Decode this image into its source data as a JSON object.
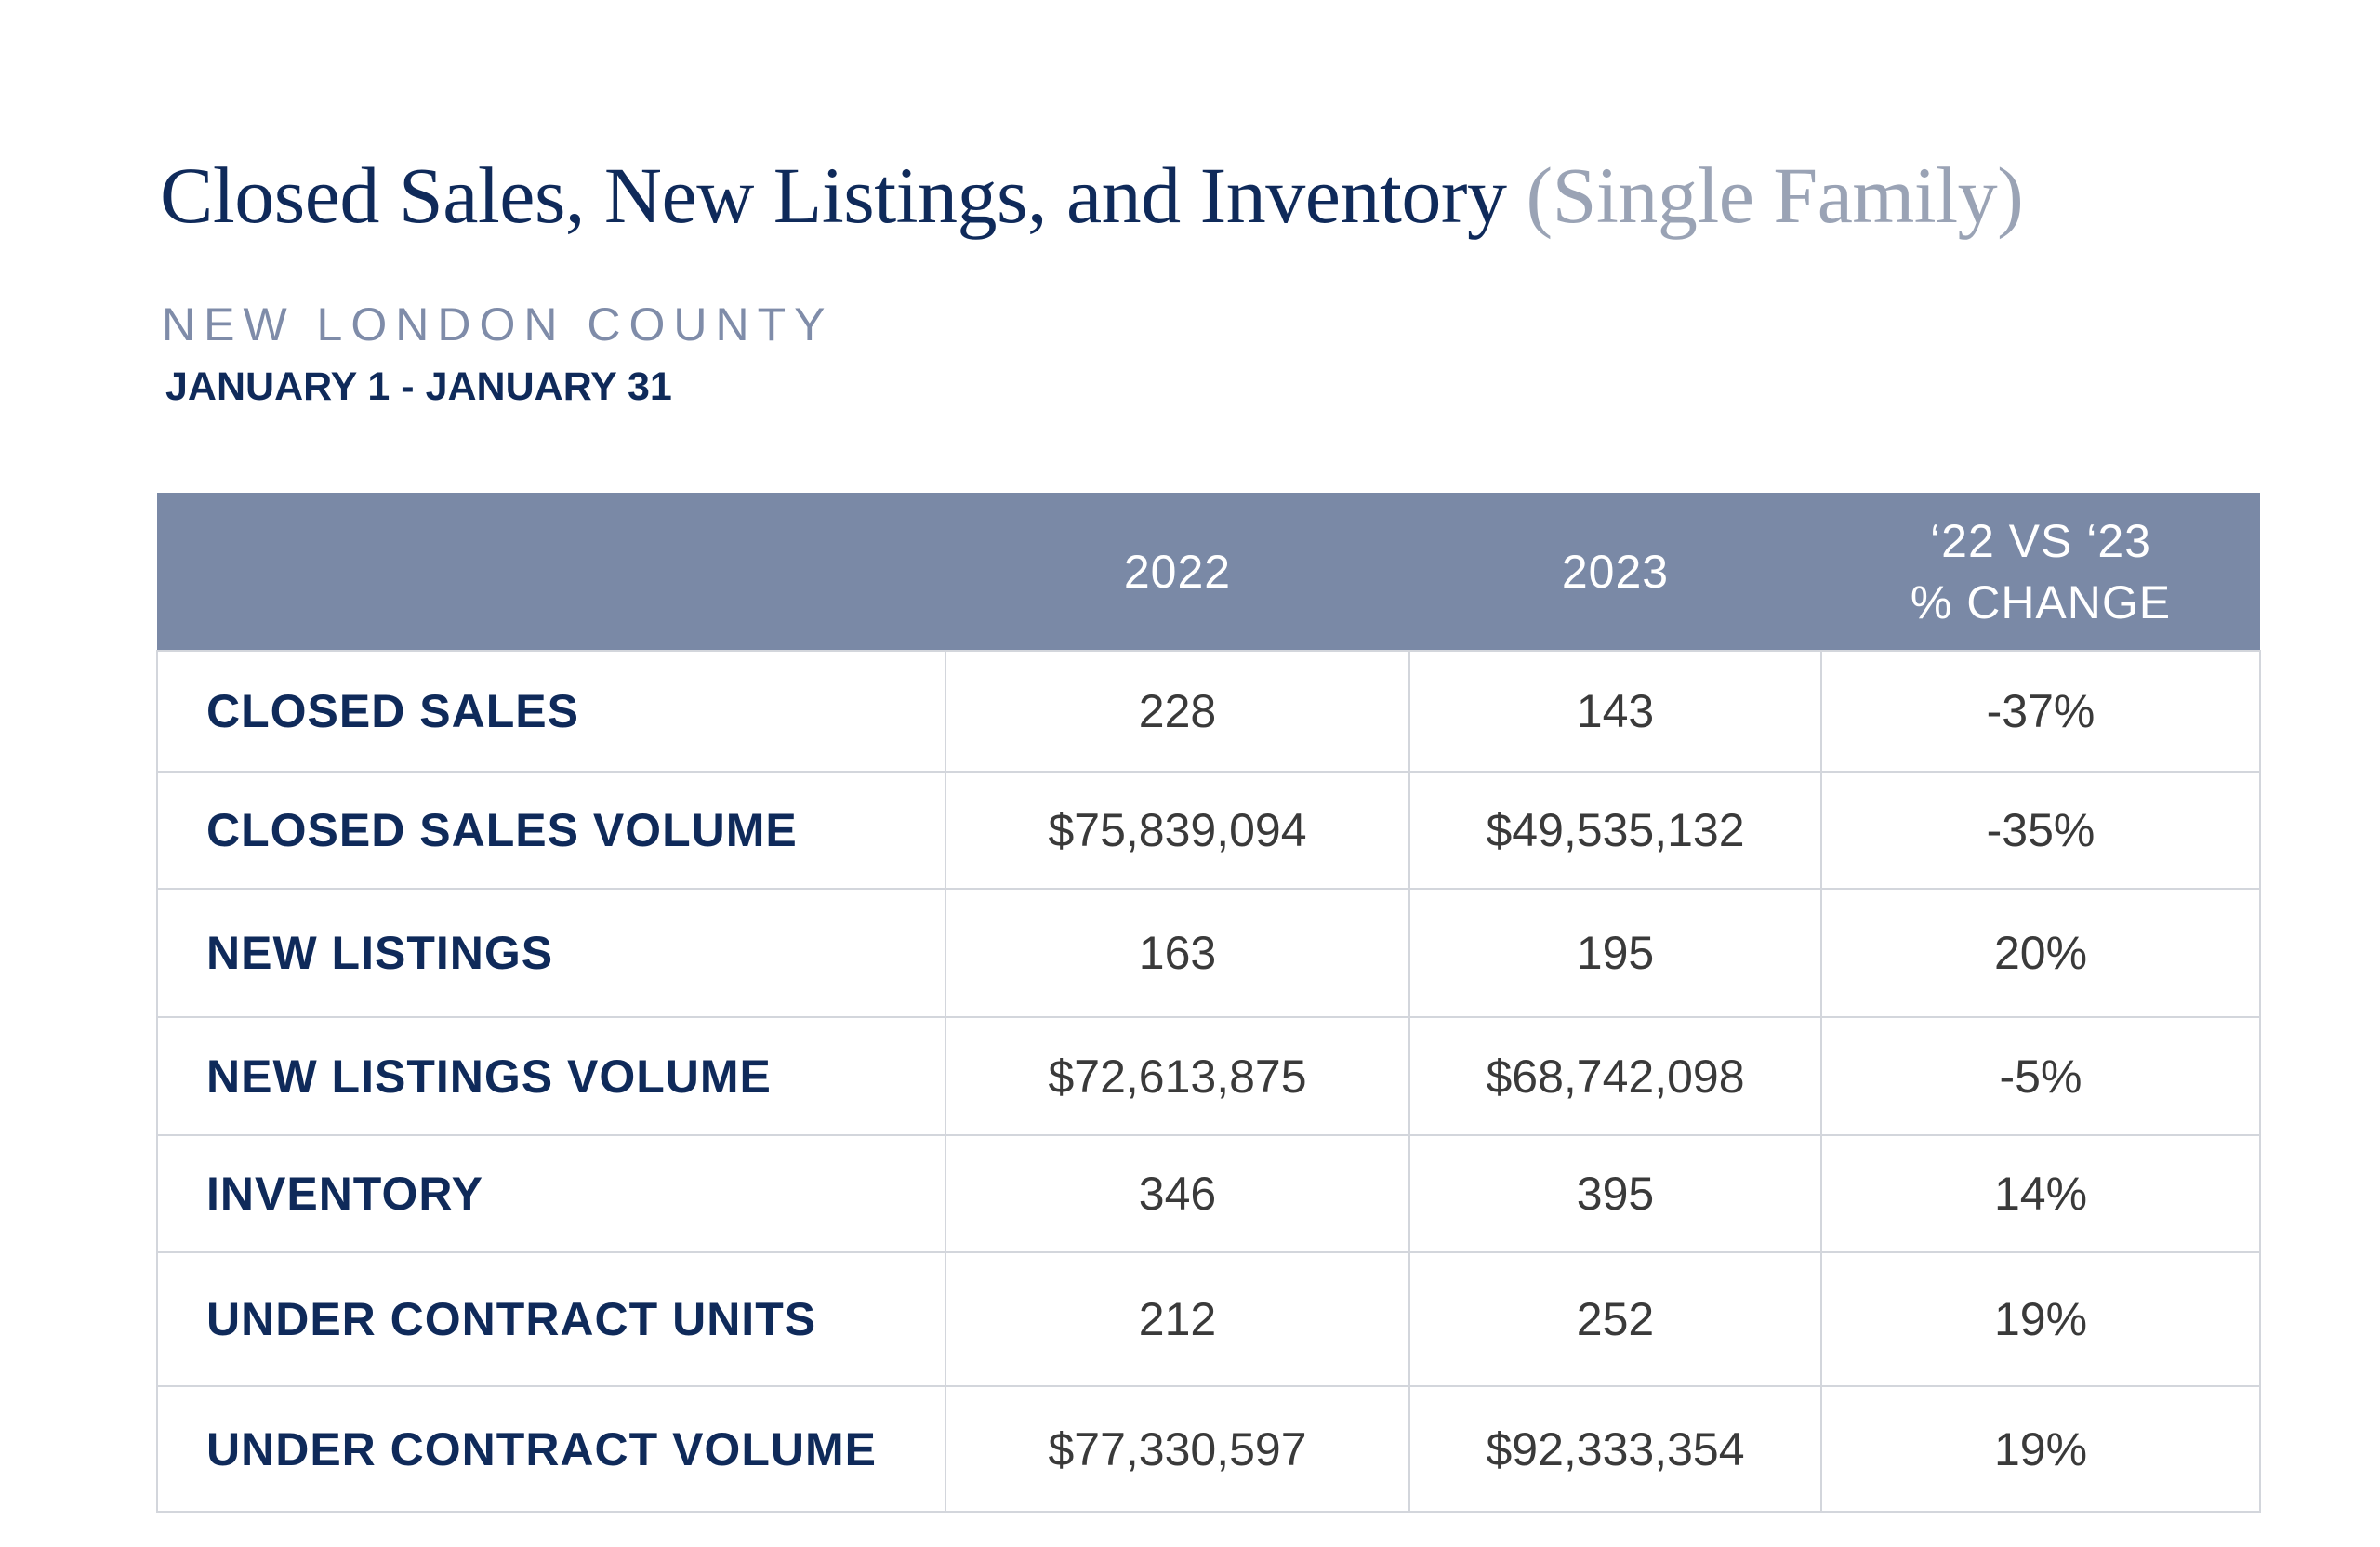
{
  "title": {
    "main": "Closed Sales, New Listings, and Inventory",
    "paren": "(Single Family)"
  },
  "county": "NEW LONDON COUNTY",
  "dates": "JANUARY 1 - JANUARY 31",
  "colors": {
    "navy": "#0f2a5a",
    "header_bg": "#7a89a6",
    "county": "#7f8ca9",
    "value": "#3a3a3a"
  },
  "table": {
    "headers": [
      "",
      "2022",
      "2023",
      "‘22 VS ‘23",
      "% CHANGE"
    ],
    "rows": [
      {
        "label": "CLOSED SALES",
        "y2022": "228",
        "y2023": "143",
        "change": "-37%"
      },
      {
        "label": "CLOSED SALES VOLUME",
        "y2022": "$75,839,094",
        "y2023": "$49,535,132",
        "change": "-35%"
      },
      {
        "label": "NEW LISTINGS",
        "y2022": "163",
        "y2023": "195",
        "change": "20%"
      },
      {
        "label": "NEW LISTINGS VOLUME",
        "y2022": "$72,613,875",
        "y2023": "$68,742,098",
        "change": "-5%"
      },
      {
        "label": "INVENTORY",
        "y2022": "346",
        "y2023": "395",
        "change": "14%"
      },
      {
        "label": "UNDER CONTRACT UNITS",
        "y2022": "212",
        "y2023": "252",
        "change": "19%"
      },
      {
        "label": "UNDER CONTRACT VOLUME",
        "y2022": "$77,330,597",
        "y2023": "$92,333,354",
        "change": "19%"
      }
    ]
  }
}
